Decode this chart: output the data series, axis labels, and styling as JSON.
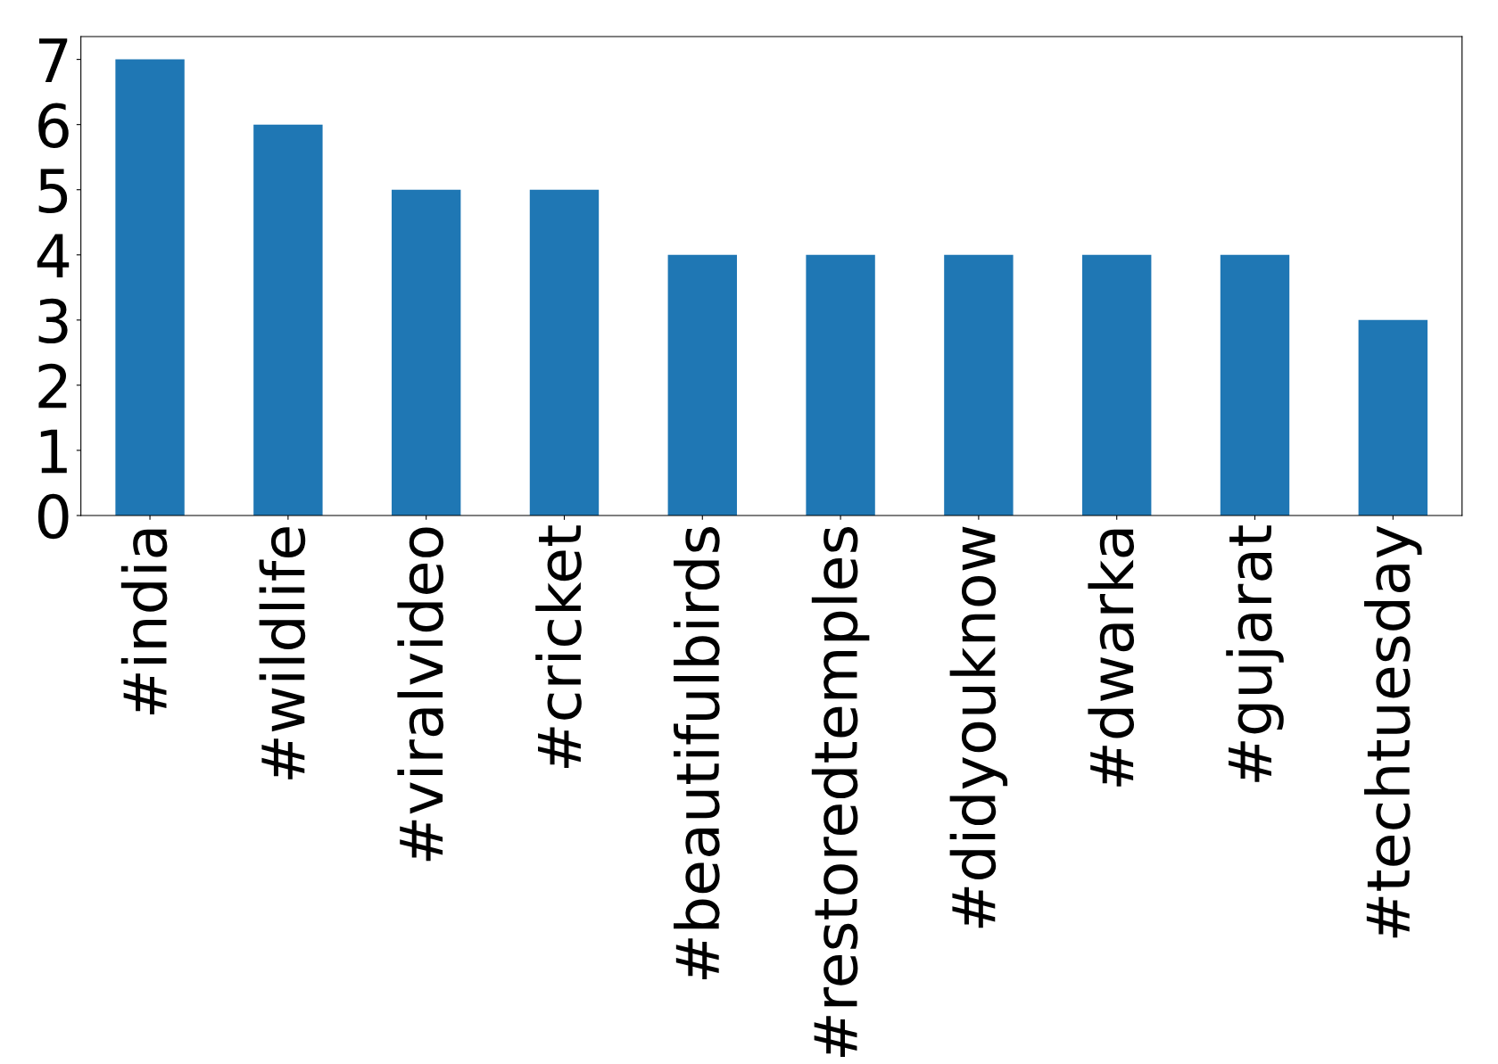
{
  "chart_data": {
    "type": "bar",
    "categories": [
      "#india",
      "#wildlife",
      "#viralvideo",
      "#cricket",
      "#beautifulbirds",
      "#restoredtemples",
      "#didyouknow",
      "#dwarka",
      "#gujarat",
      "#techtuesday"
    ],
    "values": [
      7,
      6,
      5,
      5,
      4,
      4,
      4,
      4,
      4,
      3
    ],
    "color": "#1f77b4",
    "ylim": [
      0,
      7.35
    ],
    "yticks": [
      0,
      1,
      2,
      3,
      4,
      5,
      6,
      7
    ],
    "grid": false,
    "legend": false
  }
}
